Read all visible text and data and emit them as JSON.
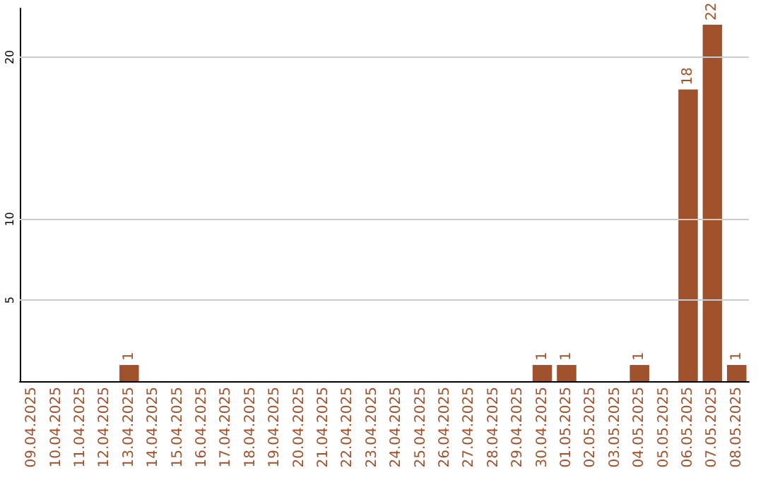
{
  "chart_data": {
    "type": "bar",
    "categories": [
      "09.04.2025",
      "10.04.2025",
      "11.04.2025",
      "12.04.2025",
      "13.04.2025",
      "14.04.2025",
      "15.04.2025",
      "16.04.2025",
      "17.04.2025",
      "18.04.2025",
      "19.04.2025",
      "20.04.2025",
      "21.04.2025",
      "22.04.2025",
      "23.04.2025",
      "24.04.2025",
      "25.04.2025",
      "26.04.2025",
      "27.04.2025",
      "28.04.2025",
      "29.04.2025",
      "30.04.2025",
      "01.05.2025",
      "02.05.2025",
      "03.05.2025",
      "04.05.2025",
      "05.05.2025",
      "06.05.2025",
      "07.05.2025",
      "08.05.2025"
    ],
    "values": [
      0,
      0,
      0,
      0,
      1,
      0,
      0,
      0,
      0,
      0,
      0,
      0,
      0,
      0,
      0,
      0,
      0,
      0,
      0,
      0,
      0,
      1,
      1,
      0,
      0,
      1,
      0,
      18,
      22,
      1
    ],
    "value_labels": [
      null,
      null,
      null,
      null,
      "1",
      null,
      null,
      null,
      null,
      null,
      null,
      null,
      null,
      null,
      null,
      null,
      null,
      null,
      null,
      null,
      null,
      "1",
      "1",
      null,
      null,
      "1",
      null,
      "18",
      "22",
      "1"
    ],
    "color": "#a0522d",
    "ylim": [
      0,
      23
    ],
    "yticks": [
      5,
      10,
      20
    ],
    "grid": "y"
  }
}
